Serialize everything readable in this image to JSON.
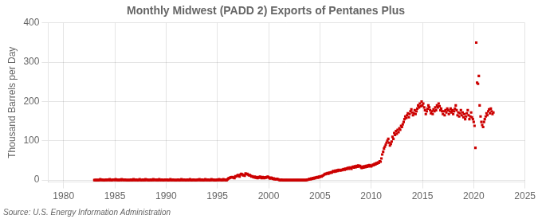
{
  "chart_data": {
    "type": "scatter",
    "title": "Monthly Midwest (PADD 2) Exports of Pentanes Plus",
    "ylabel": "Thousand Barrels per Day",
    "source": "Source: U.S. Energy Information Administration",
    "xlim": [
      1978.5,
      2025
    ],
    "xticks": [
      1980,
      1985,
      1990,
      1995,
      2000,
      2005,
      2010,
      2015,
      2020,
      2025
    ],
    "ylim": [
      -5,
      400
    ],
    "yticks": [
      0,
      100,
      200,
      300,
      400
    ],
    "grid": true,
    "color": "#cc0000",
    "marker": "square",
    "x": [
      1983.0,
      1983.08,
      1983.17,
      1983.25,
      1983.33,
      1983.42,
      1983.5,
      1983.58,
      1983.67,
      1983.75,
      1983.83,
      1983.92,
      1984.0,
      1984.08,
      1984.17,
      1984.25,
      1984.33,
      1984.42,
      1984.5,
      1984.58,
      1984.67,
      1984.75,
      1984.83,
      1984.92,
      1985.0,
      1985.08,
      1985.17,
      1985.25,
      1985.33,
      1985.42,
      1985.5,
      1985.58,
      1985.67,
      1985.75,
      1985.83,
      1985.92,
      1986.0,
      1986.08,
      1986.17,
      1986.25,
      1986.33,
      1986.42,
      1986.5,
      1986.58,
      1986.67,
      1986.75,
      1986.83,
      1986.92,
      1987.0,
      1987.08,
      1987.17,
      1987.25,
      1987.33,
      1987.42,
      1987.5,
      1987.58,
      1987.67,
      1987.75,
      1987.83,
      1987.92,
      1988.0,
      1988.08,
      1988.17,
      1988.25,
      1988.33,
      1988.42,
      1988.5,
      1988.58,
      1988.67,
      1988.75,
      1988.83,
      1988.92,
      1989.0,
      1989.08,
      1989.17,
      1989.25,
      1989.33,
      1989.42,
      1989.5,
      1989.58,
      1989.67,
      1989.75,
      1989.83,
      1989.92,
      1990.0,
      1990.08,
      1990.17,
      1990.25,
      1990.33,
      1990.42,
      1990.5,
      1990.58,
      1990.67,
      1990.75,
      1990.83,
      1990.92,
      1991.0,
      1991.08,
      1991.17,
      1991.25,
      1991.33,
      1991.42,
      1991.5,
      1991.58,
      1991.67,
      1991.75,
      1991.83,
      1991.92,
      1992.0,
      1992.08,
      1992.17,
      1992.25,
      1992.33,
      1992.42,
      1992.5,
      1992.58,
      1992.67,
      1992.75,
      1992.83,
      1992.92,
      1993.0,
      1993.08,
      1993.17,
      1993.25,
      1993.33,
      1993.42,
      1993.5,
      1993.58,
      1993.67,
      1993.75,
      1993.83,
      1993.92,
      1994.0,
      1994.08,
      1994.17,
      1994.25,
      1994.33,
      1994.42,
      1994.5,
      1994.58,
      1994.67,
      1994.75,
      1994.83,
      1994.92,
      1995.0,
      1995.08,
      1995.17,
      1995.25,
      1995.33,
      1995.42,
      1995.5,
      1995.58,
      1995.67,
      1995.75,
      1995.83,
      1995.92,
      1996.0,
      1996.08,
      1996.17,
      1996.25,
      1996.33,
      1996.42,
      1996.5,
      1996.58,
      1996.67,
      1996.75,
      1996.83,
      1996.92,
      1997.0,
      1997.08,
      1997.17,
      1997.25,
      1997.33,
      1997.42,
      1997.5,
      1997.58,
      1997.67,
      1997.75,
      1997.83,
      1997.92,
      1998.0,
      1998.08,
      1998.17,
      1998.25,
      1998.33,
      1998.42,
      1998.5,
      1998.58,
      1998.67,
      1998.75,
      1998.83,
      1998.92,
      1999.0,
      1999.08,
      1999.17,
      1999.25,
      1999.33,
      1999.42,
      1999.5,
      1999.58,
      1999.67,
      1999.75,
      1999.83,
      1999.92,
      2000.0,
      2000.08,
      2000.17,
      2000.25,
      2000.33,
      2000.42,
      2000.5,
      2000.58,
      2000.67,
      2000.75,
      2000.83,
      2000.92,
      2001.0,
      2001.08,
      2001.17,
      2001.25,
      2001.33,
      2001.42,
      2001.5,
      2001.58,
      2001.67,
      2001.75,
      2001.83,
      2001.92,
      2002.0,
      2002.08,
      2002.17,
      2002.25,
      2002.33,
      2002.42,
      2002.5,
      2002.58,
      2002.67,
      2002.75,
      2002.83,
      2002.92,
      2003.0,
      2003.08,
      2003.17,
      2003.25,
      2003.33,
      2003.42,
      2003.5,
      2003.58,
      2003.67,
      2003.75,
      2003.83,
      2003.92,
      2004.0,
      2004.08,
      2004.17,
      2004.25,
      2004.33,
      2004.42,
      2004.5,
      2004.58,
      2004.67,
      2004.75,
      2004.83,
      2004.92,
      2005.0,
      2005.08,
      2005.17,
      2005.25,
      2005.33,
      2005.42,
      2005.5,
      2005.58,
      2005.67,
      2005.75,
      2005.83,
      2005.92,
      2006.0,
      2006.08,
      2006.17,
      2006.25,
      2006.33,
      2006.42,
      2006.5,
      2006.58,
      2006.67,
      2006.75,
      2006.83,
      2006.92,
      2007.0,
      2007.08,
      2007.17,
      2007.25,
      2007.33,
      2007.42,
      2007.5,
      2007.58,
      2007.67,
      2007.75,
      2007.83,
      2007.92,
      2008.0,
      2008.08,
      2008.17,
      2008.25,
      2008.33,
      2008.42,
      2008.5,
      2008.58,
      2008.67,
      2008.75,
      2008.83,
      2008.92,
      2009.0,
      2009.08,
      2009.17,
      2009.25,
      2009.33,
      2009.42,
      2009.5,
      2009.58,
      2009.67,
      2009.75,
      2009.83,
      2009.92,
      2010.0,
      2010.08,
      2010.17,
      2010.25,
      2010.33,
      2010.42,
      2010.5,
      2010.58,
      2010.67,
      2010.75,
      2010.83,
      2010.92,
      2011.0,
      2011.08,
      2011.17,
      2011.25,
      2011.33,
      2011.42,
      2011.5,
      2011.58,
      2011.67,
      2011.75,
      2011.83,
      2011.92,
      2012.0,
      2012.08,
      2012.17,
      2012.25,
      2012.33,
      2012.42,
      2012.5,
      2012.58,
      2012.67,
      2012.75,
      2012.83,
      2012.92,
      2013.0,
      2013.08,
      2013.17,
      2013.25,
      2013.33,
      2013.42,
      2013.5,
      2013.58,
      2013.67,
      2013.75,
      2013.83,
      2013.92,
      2014.0,
      2014.08,
      2014.17,
      2014.25,
      2014.33,
      2014.42,
      2014.5,
      2014.58,
      2014.67,
      2014.75,
      2014.83,
      2014.92,
      2015.0,
      2015.08,
      2015.17,
      2015.25,
      2015.33,
      2015.42,
      2015.5,
      2015.58,
      2015.67,
      2015.75,
      2015.83,
      2015.92,
      2016.0,
      2016.08,
      2016.17,
      2016.25,
      2016.33,
      2016.42,
      2016.5,
      2016.58,
      2016.67,
      2016.75,
      2016.83,
      2016.92,
      2017.0,
      2017.08,
      2017.17,
      2017.25,
      2017.33,
      2017.42,
      2017.5,
      2017.58,
      2017.67,
      2017.75,
      2017.83,
      2017.92,
      2018.0,
      2018.08,
      2018.17,
      2018.25,
      2018.33,
      2018.42,
      2018.5,
      2018.58,
      2018.67,
      2018.75,
      2018.83,
      2018.92,
      2019.0,
      2019.08,
      2019.17,
      2019.25,
      2019.33,
      2019.42,
      2019.5,
      2019.58,
      2019.67,
      2019.75,
      2019.83,
      2019.92,
      2020.0,
      2020.08,
      2020.17,
      2020.25,
      2020.33,
      2020.42,
      2020.5,
      2020.58,
      2020.67,
      2020.75,
      2020.83,
      2020.92,
      2021.0,
      2021.08,
      2021.17,
      2021.25,
      2021.33,
      2021.42,
      2021.5,
      2021.58,
      2021.67,
      2021.75,
      2021.83,
      2021.92
    ],
    "values": [
      0,
      0,
      0,
      0,
      0,
      0,
      0,
      2,
      0,
      1,
      0,
      0,
      0,
      0,
      1,
      0,
      1,
      0,
      2,
      0,
      0,
      0,
      1,
      1,
      0,
      2,
      0,
      1,
      0,
      0,
      1,
      0,
      2,
      0,
      1,
      0,
      1,
      0,
      0,
      0,
      0,
      0,
      0,
      1,
      0,
      0,
      2,
      0,
      0,
      1,
      0,
      0,
      0,
      2,
      0,
      0,
      0,
      1,
      0,
      0,
      2,
      0,
      1,
      0,
      0,
      0,
      1,
      0,
      0,
      2,
      0,
      1,
      0,
      1,
      0,
      0,
      2,
      0,
      0,
      1,
      0,
      0,
      0,
      1,
      0,
      1,
      0,
      0,
      0,
      2,
      0,
      0,
      1,
      0,
      0,
      0,
      0,
      0,
      1,
      0,
      0,
      0,
      2,
      0,
      0,
      1,
      0,
      0,
      0,
      1,
      0,
      0,
      2,
      0,
      0,
      0,
      1,
      0,
      0,
      0,
      0,
      1,
      0,
      2,
      0,
      0,
      1,
      0,
      0,
      0,
      2,
      0,
      0,
      1,
      0,
      0,
      0,
      2,
      0,
      1,
      0,
      0,
      0,
      0,
      1,
      0,
      2,
      0,
      1,
      0,
      0,
      2,
      0,
      1,
      0,
      0,
      2,
      4,
      5,
      6,
      7,
      8,
      7,
      6,
      5,
      10,
      9,
      11,
      13,
      11,
      9,
      14,
      16,
      15,
      12,
      13,
      11,
      17,
      15,
      16,
      14,
      12,
      13,
      11,
      9,
      10,
      8,
      7,
      9,
      6,
      7,
      5,
      8,
      6,
      9,
      7,
      5,
      8,
      6,
      5,
      7,
      6,
      8,
      9,
      7,
      5,
      4,
      6,
      5,
      3,
      4,
      2,
      3,
      2,
      3,
      2,
      1,
      0,
      0,
      1,
      0,
      0,
      0,
      0,
      0,
      0,
      0,
      0,
      0,
      0,
      0,
      0,
      0,
      0,
      0,
      0,
      0,
      0,
      0,
      0,
      0,
      0,
      0,
      0,
      0,
      0,
      0,
      0,
      0,
      1,
      1,
      2,
      3,
      2,
      4,
      3,
      5,
      4,
      6,
      5,
      7,
      8,
      6,
      9,
      8,
      10,
      9,
      11,
      12,
      14,
      16,
      15,
      17,
      18,
      16,
      19,
      18,
      20,
      19,
      22,
      23,
      21,
      24,
      22,
      25,
      23,
      26,
      25,
      24,
      26,
      25,
      27,
      28,
      26,
      29,
      28,
      30,
      31,
      29,
      32,
      31,
      29,
      33,
      34,
      32,
      35,
      33,
      36,
      34,
      37,
      35,
      36,
      33,
      31,
      34,
      32,
      35,
      33,
      36,
      34,
      37,
      35,
      38,
      36,
      35,
      37,
      39,
      38,
      41,
      40,
      43,
      42,
      45,
      44,
      48,
      47,
      55,
      65,
      72,
      80,
      85,
      90,
      95,
      100,
      105,
      95,
      88,
      92,
      98,
      110,
      105,
      120,
      115,
      125,
      118,
      128,
      122,
      132,
      128,
      138,
      135,
      142,
      148,
      155,
      162,
      158,
      165,
      170,
      160,
      168,
      175,
      180,
      172,
      165,
      170,
      178,
      168,
      175,
      182,
      190,
      185,
      195,
      188,
      200,
      190,
      195,
      185,
      178,
      168,
      175,
      182,
      190,
      185,
      178,
      170,
      175,
      168,
      180,
      175,
      185,
      178,
      190,
      185,
      195,
      188,
      178,
      182,
      175,
      168,
      175,
      165,
      178,
      172,
      182,
      178,
      168,
      175,
      182,
      172,
      178,
      168,
      175,
      182,
      190,
      178,
      165,
      172,
      162,
      170,
      178,
      165,
      172,
      160,
      168,
      155,
      162,
      170,
      178,
      165,
      155,
      162,
      172,
      160,
      155,
      148,
      138,
      82,
      350,
      248,
      245,
      265,
      190,
      162,
      148,
      140,
      135,
      148,
      155,
      162,
      170,
      165,
      175,
      180,
      170,
      182,
      175,
      168,
      172
    ]
  }
}
